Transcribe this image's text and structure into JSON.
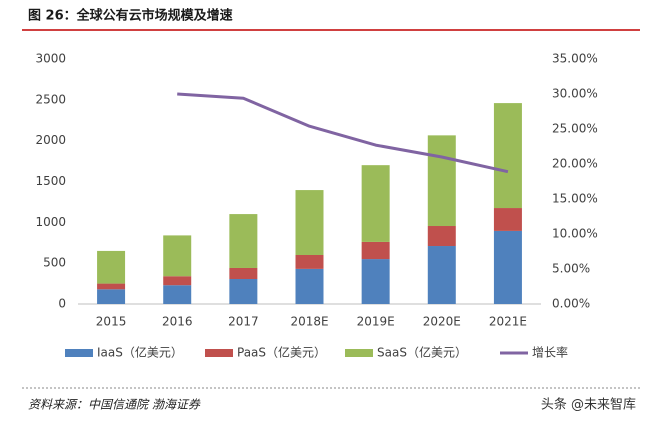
{
  "chart_data": {
    "type": "bar",
    "title": "图 26：全球公有云市场规模及增速",
    "categories": [
      "2015",
      "2016",
      "2017",
      "2018E",
      "2019E",
      "2020E",
      "2021E"
    ],
    "series": [
      {
        "name": "IaaS（亿美元）",
        "color": "#4f81bd",
        "values": [
          180,
          230,
          306,
          430,
          550,
          710,
          895
        ]
      },
      {
        "name": "PaaS（亿美元）",
        "color": "#c0504d",
        "values": [
          70,
          110,
          135,
          170,
          210,
          245,
          280
        ]
      },
      {
        "name": "SaaS（亿美元）",
        "color": "#9bbb59",
        "values": [
          400,
          500,
          660,
          795,
          940,
          1110,
          1285
        ]
      },
      {
        "name": "增长率",
        "color": "#8064a2",
        "type": "line",
        "axis": "y2",
        "values": [
          null,
          30.0,
          29.4,
          25.4,
          22.7,
          21.0,
          18.9
        ]
      }
    ],
    "ylim": [
      0,
      3000
    ],
    "yticks": [
      0,
      500,
      1000,
      1500,
      2000,
      2500,
      3000
    ],
    "y2lim": [
      0,
      35
    ],
    "y2ticks": [
      {
        "value": 0,
        "label": "0.00%"
      },
      {
        "value": 5,
        "label": "5.00%"
      },
      {
        "value": 10,
        "label": "10.00%"
      },
      {
        "value": 15,
        "label": "15.00%"
      },
      {
        "value": 20,
        "label": "20.00%"
      },
      {
        "value": 25,
        "label": "25.00%"
      },
      {
        "value": 30,
        "label": "30.00%"
      },
      {
        "value": 35,
        "label": "35.00%"
      }
    ],
    "legend": "bottom",
    "grid": false,
    "source": "资料来源：中国信通院 渤海证券",
    "watermark": "头条 @未来智库"
  }
}
